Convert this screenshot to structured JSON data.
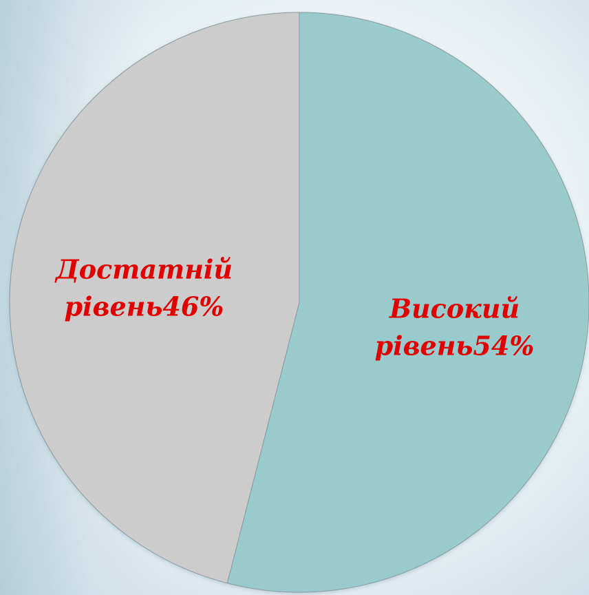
{
  "chart_data": {
    "type": "pie",
    "title": "",
    "slices": [
      {
        "label_line1": "Високий",
        "label_line2": "рівень54%",
        "value": 54,
        "color": "#99cbcd"
      },
      {
        "label_line1": "Достатній",
        "label_line2": "рівень46%",
        "value": 46,
        "color": "#cccccc"
      }
    ],
    "label_color": "#e00000",
    "start_position": "top",
    "direction": "clockwise",
    "legend": "none"
  }
}
